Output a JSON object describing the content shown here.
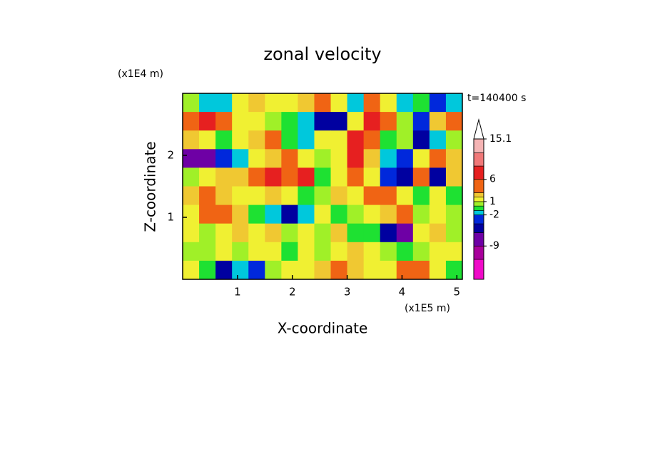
{
  "chart_data": {
    "type": "contour",
    "title": "zonal velocity",
    "x_label": "X-coordinate",
    "y_label": "Z-coordinate",
    "x_unit": "(x1E5 m)",
    "y_unit": "(x1E4 m)",
    "time_label": "t=140400 s",
    "xlim": [
      0,
      5.1
    ],
    "ylim": [
      0,
      3
    ],
    "xticks": [
      1,
      2,
      3,
      4,
      5
    ],
    "yticks": [
      1,
      2
    ],
    "x": [
      0.15,
      0.45,
      0.75,
      1.05,
      1.35,
      1.65,
      1.95,
      2.25,
      2.55,
      2.85,
      3.15,
      3.45,
      3.75,
      4.05,
      4.35,
      4.65,
      4.95
    ],
    "y": [
      2.85,
      2.55,
      2.25,
      1.95,
      1.65,
      1.35,
      1.05,
      0.75,
      0.45,
      0.15
    ],
    "z": [
      [
        0.5,
        -1.5,
        -1.5,
        1.5,
        2,
        1.5,
        1,
        2,
        3,
        1.5,
        -1.5,
        4,
        1,
        -1.5,
        -1,
        -4,
        -1.5
      ],
      [
        4,
        6,
        3,
        1,
        1.5,
        0.5,
        -1,
        -2,
        -6,
        -6,
        1,
        6,
        3,
        0,
        -3,
        2,
        4
      ],
      [
        2,
        1,
        -1,
        1,
        2,
        3,
        -1,
        -2,
        1,
        1,
        6,
        3,
        -1,
        0,
        -6,
        -2,
        0.5
      ],
      [
        -9,
        -8,
        -4,
        -2,
        1,
        2,
        3,
        1,
        0,
        1,
        6,
        2,
        -2,
        -3,
        1,
        4,
        2
      ],
      [
        0,
        1,
        2,
        2,
        3,
        6,
        4,
        6,
        -1,
        1,
        3,
        1,
        -3,
        -6,
        3,
        -6,
        2
      ],
      [
        2,
        3,
        2,
        1,
        1,
        2,
        1,
        -1,
        0,
        2,
        1,
        3,
        4,
        1,
        -1,
        1,
        -1
      ],
      [
        1,
        3,
        3,
        2,
        -1,
        -2,
        -6,
        -2,
        1,
        -1,
        0,
        1,
        2,
        3,
        0,
        1,
        0
      ],
      [
        1,
        0,
        1,
        2,
        1,
        2,
        0,
        1,
        0,
        2,
        -1,
        -1,
        -6,
        -9,
        1,
        2,
        0
      ],
      [
        0,
        0,
        1,
        0,
        1,
        1,
        -1,
        1,
        0,
        1,
        2,
        1,
        0,
        -1,
        0,
        1,
        1
      ],
      [
        1,
        -1,
        -6,
        -2,
        -4,
        0,
        1,
        1,
        2,
        3,
        2,
        1,
        1,
        3,
        3,
        1,
        -1
      ]
    ],
    "colorbar": {
      "levels": [
        -16.5,
        -12,
        -9,
        -6,
        -4,
        -2,
        -1,
        0,
        1,
        2,
        3,
        6,
        9,
        12,
        15.1
      ],
      "colors": [
        "#f00ac8",
        "#a8009b",
        "#6e00a5",
        "#0000a0",
        "#0028dc",
        "#00c8dc",
        "#1ee132",
        "#a0f028",
        "#f0f032",
        "#f0c832",
        "#f06414",
        "#e62020",
        "#f07878",
        "#f5b4b4"
      ],
      "extend_color": "#ffffff",
      "ticks": [
        15.1,
        6,
        1,
        -2,
        -9
      ]
    }
  }
}
